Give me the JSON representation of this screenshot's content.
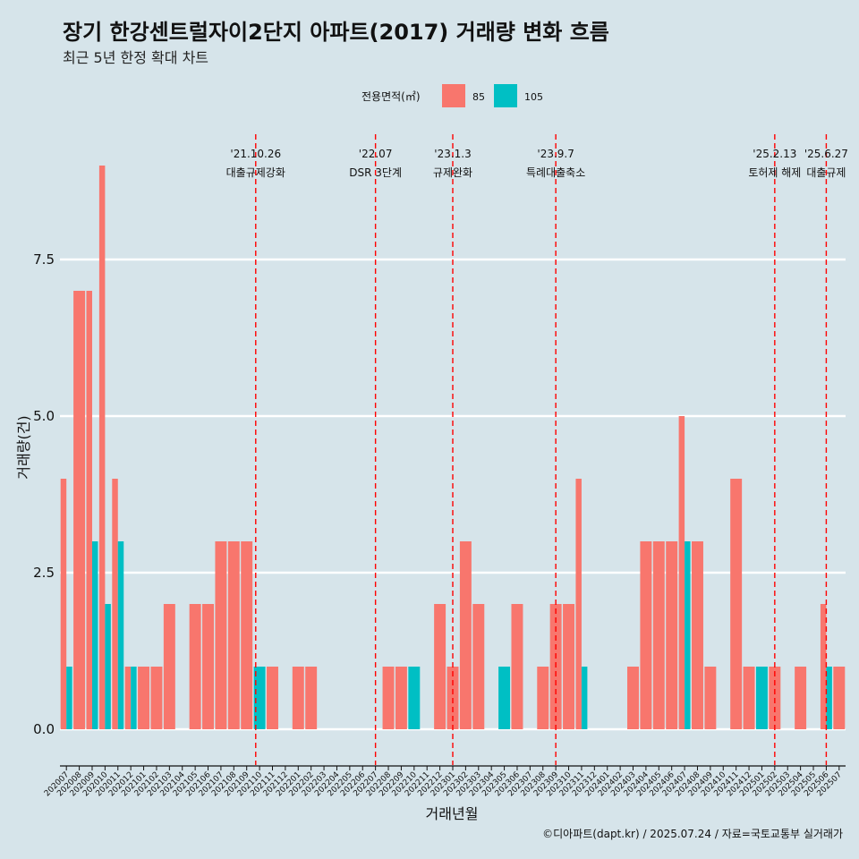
{
  "title": "장기 한강센트럴자이2단지 아파트(2017) 거래량 변화 흐름",
  "subtitle": "최근 5년 한정 확대 차트",
  "caption": "©디아파트(dapt.kr) / 2025.07.24 / 자료=국토교통부 실거래가",
  "legend": {
    "title": "전용면적(㎡)",
    "items": [
      {
        "label": "85",
        "color": "#f8766d"
      },
      {
        "label": "105",
        "color": "#00bfc4"
      }
    ]
  },
  "chart_data": {
    "type": "bar",
    "xlabel": "거래년월",
    "ylabel": "거래량(건)",
    "ylim": [
      -0.5,
      9.5
    ],
    "yticks": [
      "0.0",
      "2.5",
      "5.0",
      "7.5"
    ],
    "ytick_values": [
      0,
      2.5,
      5.0,
      7.5
    ],
    "categories": [
      "202007",
      "202008",
      "202009",
      "202010",
      "202011",
      "202012",
      "202101",
      "202102",
      "202103",
      "202104",
      "202105",
      "202106",
      "202107",
      "202108",
      "202109",
      "202110",
      "202111",
      "202112",
      "202201",
      "202202",
      "202203",
      "202204",
      "202205",
      "202206",
      "202207",
      "202208",
      "202209",
      "202210",
      "202211",
      "202212",
      "202301",
      "202302",
      "202303",
      "202304",
      "202305",
      "202306",
      "202307",
      "202308",
      "202309",
      "202310",
      "202311",
      "202312",
      "202401",
      "202402",
      "202403",
      "202404",
      "202405",
      "202406",
      "202407",
      "202408",
      "202409",
      "202410",
      "202411",
      "202412",
      "202501",
      "202502",
      "202503",
      "202504",
      "202505",
      "202506",
      "202507"
    ],
    "series": [
      {
        "name": "85",
        "color": "#f8766d",
        "values": [
          4,
          7,
          7,
          9,
          4,
          1,
          1,
          1,
          2,
          0,
          2,
          2,
          3,
          3,
          3,
          0,
          1,
          0,
          1,
          1,
          0,
          0,
          0,
          0,
          0,
          1,
          1,
          0,
          0,
          2,
          1,
          3,
          2,
          0,
          0,
          2,
          0,
          1,
          2,
          2,
          4,
          0,
          0,
          0,
          1,
          3,
          3,
          3,
          5,
          3,
          1,
          0,
          4,
          1,
          0,
          1,
          0,
          1,
          0,
          2,
          1
        ]
      },
      {
        "name": "105",
        "color": "#00bfc4",
        "values": [
          1,
          0,
          3,
          2,
          3,
          1,
          0,
          0,
          0,
          0,
          0,
          0,
          0,
          0,
          0,
          1,
          0,
          0,
          0,
          0,
          0,
          0,
          0,
          0,
          0,
          0,
          0,
          1,
          0,
          0,
          0,
          0,
          0,
          0,
          1,
          0,
          0,
          0,
          0,
          0,
          1,
          0,
          0,
          0,
          0,
          0,
          0,
          0,
          3,
          0,
          0,
          0,
          0,
          0,
          1,
          0,
          0,
          0,
          0,
          1,
          0
        ]
      }
    ],
    "events": [
      {
        "date": "'21.10.26",
        "label": "대출규제강화",
        "x": "202110",
        "offset": -0.3
      },
      {
        "date": "'22.07",
        "label": "DSR 3단계",
        "x": "202207",
        "offset": 0
      },
      {
        "date": "'23.1.3",
        "label": "규제완화",
        "x": "202301",
        "offset": 0
      },
      {
        "date": "'23.9.7",
        "label": "특례대출축소",
        "x": "202309",
        "offset": 0
      },
      {
        "date": "'25.2.13",
        "label": "토허제 해제",
        "x": "202502",
        "offset": 0
      },
      {
        "date": "'25.6.27",
        "label": "대출규제",
        "x": "202506",
        "offset": 0
      }
    ],
    "grid": true,
    "legend_position": "top"
  }
}
